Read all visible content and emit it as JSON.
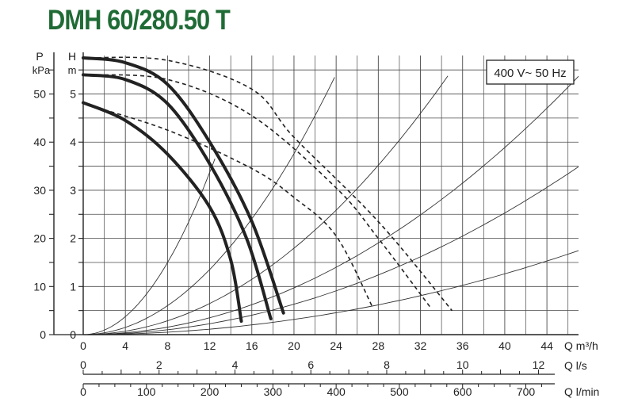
{
  "title": "DMH 60/280.50 T",
  "chart_data": {
    "type": "line",
    "title": "DMH 60/280.50 T",
    "annotation": "400 V~ 50 Hz",
    "colors": {
      "title": "#1f6b35",
      "curves": "#222222",
      "grid": "#4a4a4a"
    },
    "y_left_outer": {
      "label": "P",
      "unit": "kPa",
      "ticks": [
        0,
        10,
        20,
        30,
        40,
        50
      ],
      "range": [
        0,
        58
      ]
    },
    "y_left_inner": {
      "label": "H",
      "unit": "m",
      "ticks": [
        0,
        1,
        2,
        3,
        4,
        5
      ],
      "range": [
        0,
        5.8
      ]
    },
    "x_axes": [
      {
        "label": "Q m³/h",
        "ticks": [
          0,
          4,
          8,
          12,
          16,
          20,
          24,
          28,
          32,
          36,
          40,
          44
        ],
        "range": [
          0,
          47
        ]
      },
      {
        "label": "Q l/s",
        "ticks": [
          0,
          2,
          4,
          6,
          8,
          10,
          12
        ]
      },
      {
        "label": "Q l/min",
        "ticks": [
          0,
          100,
          200,
          300,
          400,
          500,
          600,
          700
        ]
      }
    ],
    "pump_curves": [
      {
        "style": "solid",
        "points": [
          [
            0,
            4.82
          ],
          [
            4,
            4.45
          ],
          [
            8,
            3.75
          ],
          [
            12,
            2.65
          ],
          [
            14,
            1.55
          ],
          [
            15,
            0.28
          ]
        ]
      },
      {
        "style": "solid",
        "points": [
          [
            0,
            5.4
          ],
          [
            4,
            5.3
          ],
          [
            8,
            4.8
          ],
          [
            12,
            3.55
          ],
          [
            15.5,
            2.0
          ],
          [
            17.8,
            0.33
          ]
        ]
      },
      {
        "style": "solid",
        "points": [
          [
            0,
            5.75
          ],
          [
            4,
            5.65
          ],
          [
            8,
            5.2
          ],
          [
            12,
            4.0
          ],
          [
            16,
            2.35
          ],
          [
            19,
            0.45
          ]
        ]
      }
    ],
    "dashed_curves": [
      {
        "style": "dashed",
        "points": [
          [
            0,
            4.8
          ],
          [
            8,
            4.25
          ],
          [
            16,
            3.45
          ],
          [
            20,
            2.85
          ],
          [
            24,
            2.05
          ],
          [
            27.5,
            0.55
          ]
        ]
      },
      {
        "style": "dashed",
        "points": [
          [
            0,
            5.4
          ],
          [
            8,
            5.3
          ],
          [
            16,
            4.55
          ],
          [
            24,
            3.05
          ],
          [
            28,
            2.0
          ],
          [
            33,
            0.55
          ]
        ]
      },
      {
        "style": "dashed",
        "points": [
          [
            0,
            5.75
          ],
          [
            8,
            5.7
          ],
          [
            16,
            5.1
          ],
          [
            20,
            4.1
          ],
          [
            28,
            2.35
          ],
          [
            35,
            0.5
          ]
        ]
      }
    ],
    "system_curves": [
      {
        "k": 0.0234,
        "end": 12.5
      },
      {
        "k": 0.0094,
        "end": 23.85
      },
      {
        "k": 0.00449,
        "end": 34.6
      },
      {
        "k": 0.00243,
        "end": 47.0
      },
      {
        "k": 0.00158,
        "end": 47.0
      },
      {
        "k": 0.00079,
        "end": 47.0
      }
    ]
  }
}
